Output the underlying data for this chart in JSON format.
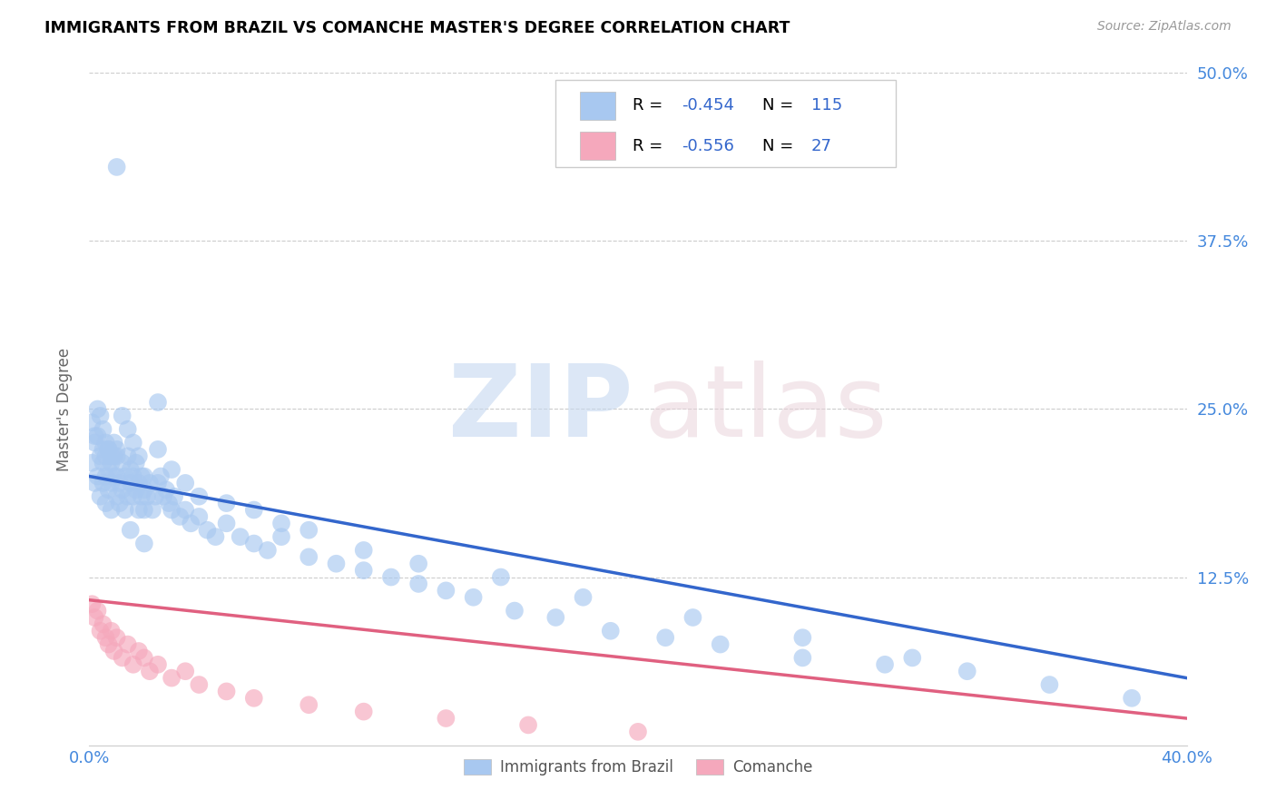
{
  "title": "IMMIGRANTS FROM BRAZIL VS COMANCHE MASTER'S DEGREE CORRELATION CHART",
  "source": "Source: ZipAtlas.com",
  "ylabel": "Master's Degree",
  "ytick_labels": [
    "",
    "12.5%",
    "25.0%",
    "37.5%",
    "50.0%"
  ],
  "ytick_values": [
    0.0,
    0.125,
    0.25,
    0.375,
    0.5
  ],
  "xlim": [
    0.0,
    0.4
  ],
  "ylim": [
    0.0,
    0.5
  ],
  "legend_r_brazil": "-0.454",
  "legend_n_brazil": "115",
  "legend_r_comanche": "-0.556",
  "legend_n_comanche": "27",
  "brazil_color": "#A8C8F0",
  "comanche_color": "#F5A8BC",
  "brazil_line_color": "#3366CC",
  "comanche_line_color": "#E06080",
  "brazil_line_start_y": 0.2,
  "brazil_line_end_y": 0.05,
  "comanche_line_start_y": 0.108,
  "comanche_line_end_y": 0.02,
  "brazil_x": [
    0.001,
    0.002,
    0.002,
    0.003,
    0.003,
    0.004,
    0.004,
    0.005,
    0.005,
    0.005,
    0.006,
    0.006,
    0.006,
    0.007,
    0.007,
    0.007,
    0.008,
    0.008,
    0.008,
    0.009,
    0.009,
    0.01,
    0.01,
    0.01,
    0.011,
    0.011,
    0.012,
    0.012,
    0.013,
    0.013,
    0.014,
    0.014,
    0.015,
    0.015,
    0.016,
    0.016,
    0.017,
    0.017,
    0.018,
    0.018,
    0.019,
    0.019,
    0.02,
    0.02,
    0.021,
    0.022,
    0.023,
    0.024,
    0.025,
    0.026,
    0.027,
    0.028,
    0.029,
    0.03,
    0.031,
    0.033,
    0.035,
    0.037,
    0.04,
    0.043,
    0.046,
    0.05,
    0.055,
    0.06,
    0.065,
    0.07,
    0.08,
    0.09,
    0.1,
    0.11,
    0.12,
    0.13,
    0.14,
    0.155,
    0.17,
    0.19,
    0.21,
    0.23,
    0.26,
    0.29,
    0.32,
    0.35,
    0.38,
    0.001,
    0.002,
    0.003,
    0.004,
    0.005,
    0.006,
    0.007,
    0.008,
    0.009,
    0.01,
    0.012,
    0.014,
    0.016,
    0.018,
    0.02,
    0.025,
    0.03,
    0.035,
    0.04,
    0.05,
    0.06,
    0.07,
    0.08,
    0.1,
    0.12,
    0.15,
    0.18,
    0.22,
    0.26,
    0.3,
    0.01,
    0.015,
    0.02,
    0.025
  ],
  "brazil_y": [
    0.21,
    0.225,
    0.195,
    0.23,
    0.2,
    0.215,
    0.185,
    0.22,
    0.195,
    0.21,
    0.2,
    0.215,
    0.18,
    0.205,
    0.19,
    0.22,
    0.195,
    0.21,
    0.175,
    0.2,
    0.215,
    0.185,
    0.2,
    0.22,
    0.195,
    0.18,
    0.21,
    0.19,
    0.2,
    0.175,
    0.215,
    0.185,
    0.195,
    0.205,
    0.185,
    0.2,
    0.19,
    0.21,
    0.175,
    0.195,
    0.185,
    0.2,
    0.19,
    0.175,
    0.185,
    0.195,
    0.175,
    0.185,
    0.195,
    0.2,
    0.185,
    0.19,
    0.18,
    0.175,
    0.185,
    0.17,
    0.175,
    0.165,
    0.17,
    0.16,
    0.155,
    0.165,
    0.155,
    0.15,
    0.145,
    0.155,
    0.14,
    0.135,
    0.13,
    0.125,
    0.12,
    0.115,
    0.11,
    0.1,
    0.095,
    0.085,
    0.08,
    0.075,
    0.065,
    0.06,
    0.055,
    0.045,
    0.035,
    0.24,
    0.23,
    0.25,
    0.245,
    0.235,
    0.225,
    0.22,
    0.215,
    0.225,
    0.215,
    0.245,
    0.235,
    0.225,
    0.215,
    0.2,
    0.22,
    0.205,
    0.195,
    0.185,
    0.18,
    0.175,
    0.165,
    0.16,
    0.145,
    0.135,
    0.125,
    0.11,
    0.095,
    0.08,
    0.065,
    0.43,
    0.16,
    0.15,
    0.255
  ],
  "comanche_x": [
    0.001,
    0.002,
    0.003,
    0.004,
    0.005,
    0.006,
    0.007,
    0.008,
    0.009,
    0.01,
    0.012,
    0.014,
    0.016,
    0.018,
    0.02,
    0.022,
    0.025,
    0.03,
    0.035,
    0.04,
    0.05,
    0.06,
    0.08,
    0.1,
    0.13,
    0.16,
    0.2
  ],
  "comanche_y": [
    0.105,
    0.095,
    0.1,
    0.085,
    0.09,
    0.08,
    0.075,
    0.085,
    0.07,
    0.08,
    0.065,
    0.075,
    0.06,
    0.07,
    0.065,
    0.055,
    0.06,
    0.05,
    0.055,
    0.045,
    0.04,
    0.035,
    0.03,
    0.025,
    0.02,
    0.015,
    0.01
  ]
}
